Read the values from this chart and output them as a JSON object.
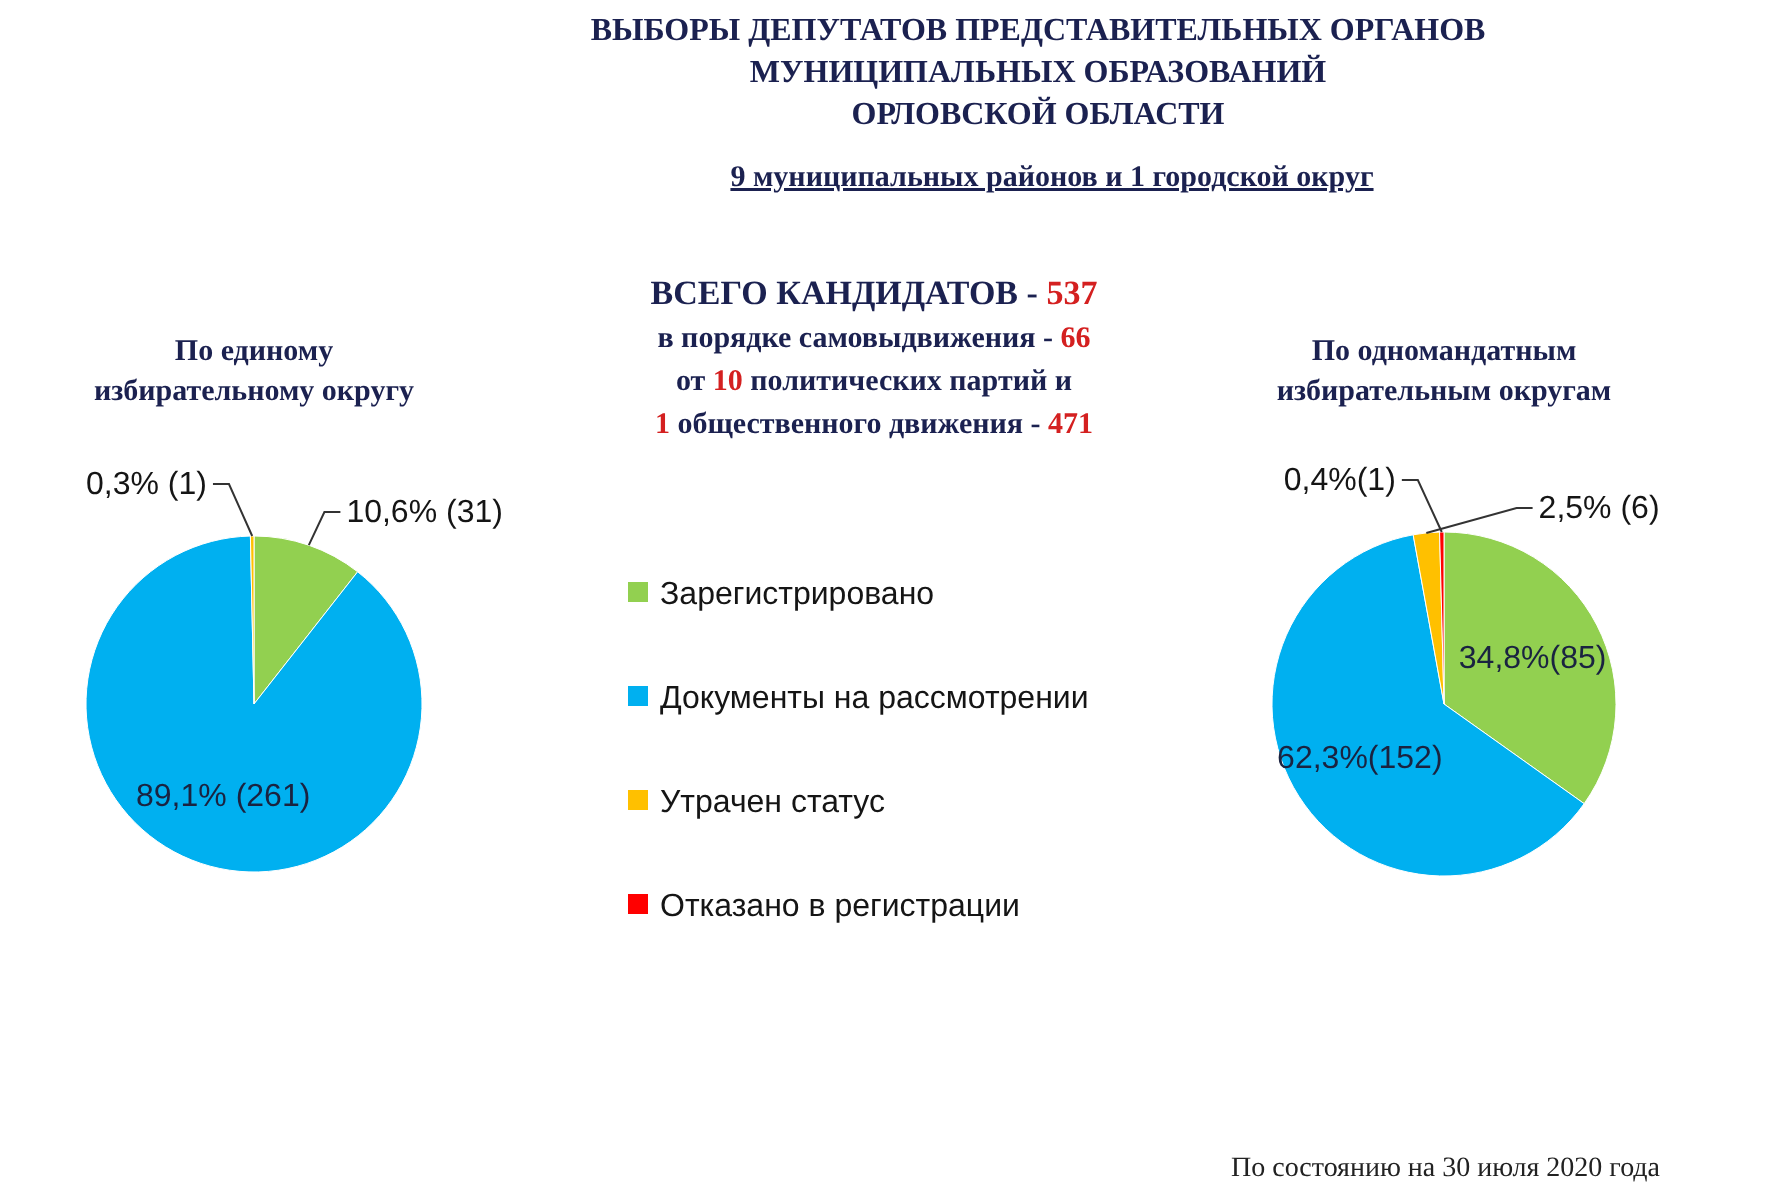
{
  "chart_data": [
    {
      "type": "pie",
      "title": "По единому\nизбирательному округу",
      "categories": [
        null,
        null,
        null
      ],
      "values": [
        31,
        261,
        1
      ],
      "colors": [
        "#92d050",
        "#00b0f0",
        "#ffc000"
      ],
      "value_labels": [
        "10,6% (31)",
        "89,1% (261)",
        "0,3% (1)"
      ],
      "annotations": [
        "ВЫБОРЫ ДЕПУТАТОВ ПРЕДСТАВИТЕЛЬНЫХ ОРГАНОВ\nМУНИЦИПАЛЬНЫХ ОБРАЗОВАНИЙ\nОРЛОВСКОЙ ОБЛАСТИ",
        "9 муниципальных районов и 1 городской округ",
        "ВСЕГО КАНДИДАТОВ - 537\nв порядке самовыдвижения - 66\nот 10 политических партий и\n1 общественного движения - 471",
        "По состоянию на 30 июля 2020 года"
      ]
    },
    {
      "type": "pie",
      "title": "По одномандатным\nизбирательным округам",
      "categories": [
        "Зарегистрировано",
        "Документы на рассмотрении",
        "Утрачен статус",
        "Отказано в регистрации"
      ],
      "values": [
        85,
        152,
        6,
        1
      ],
      "colors": [
        "#92d050",
        "#00b0f0",
        "#ffc000",
        "#ff0000"
      ],
      "value_labels": [
        "34,8%(85)",
        "62,3%(152)",
        "2,5% (6)",
        "0,4%(1)"
      ],
      "legend": "left"
    }
  ]
}
